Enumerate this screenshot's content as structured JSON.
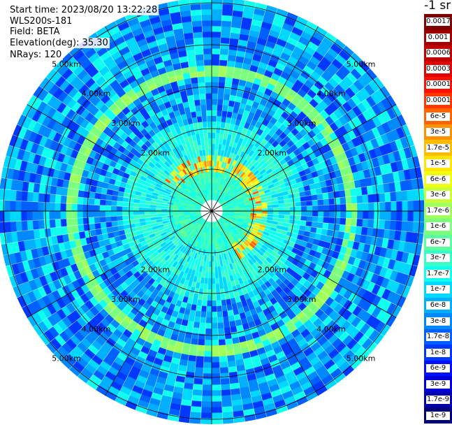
{
  "header": {
    "start_time": "Start time: 2023/08/20 13:22:28",
    "device": "WLS200s-181",
    "field": "Field: BETA",
    "elevation": "Elevation(deg): 35.30",
    "nrays": "NRays: 120"
  },
  "plot": {
    "n_rays": 120,
    "range_labels": [
      "2.00km",
      "3.00km",
      "4.00km",
      "5.00km"
    ],
    "ring_count": 5
  },
  "colorbar": {
    "unit": "-1 sr",
    "levels": [
      {
        "label": "0.0017",
        "color": "#7f0000"
      },
      {
        "label": "0.001",
        "color": "#a00000"
      },
      {
        "label": "0.0006",
        "color": "#c00000"
      },
      {
        "label": "0.0003",
        "color": "#e00000"
      },
      {
        "label": "0.00017",
        "color": "#ff1000"
      },
      {
        "label": "0.0001",
        "color": "#ff3800"
      },
      {
        "label": "6e-5",
        "color": "#ff6400"
      },
      {
        "label": "3e-5",
        "color": "#ff9000"
      },
      {
        "label": "1.7e-5",
        "color": "#ffbc00"
      },
      {
        "label": "1e-5",
        "color": "#ffe400"
      },
      {
        "label": "6e-6",
        "color": "#f0ff10"
      },
      {
        "label": "3e-6",
        "color": "#c8ff36"
      },
      {
        "label": "1.7e-6",
        "color": "#a0ff5a"
      },
      {
        "label": "1e-6",
        "color": "#7cff7c"
      },
      {
        "label": "6e-7",
        "color": "#5affa0"
      },
      {
        "label": "3e-7",
        "color": "#36ffc8"
      },
      {
        "label": "1.7e-7",
        "color": "#10ffee"
      },
      {
        "label": "1e-7",
        "color": "#00d8ff"
      },
      {
        "label": "6e-8",
        "color": "#00b0ff"
      },
      {
        "label": "3e-8",
        "color": "#0088ff"
      },
      {
        "label": "1.7e-8",
        "color": "#0060ff"
      },
      {
        "label": "1e-8",
        "color": "#0038ff"
      },
      {
        "label": "6e-9",
        "color": "#0010ff"
      },
      {
        "label": "3e-9",
        "color": "#0000d8"
      },
      {
        "label": "1.7e-9",
        "color": "#0000a8"
      },
      {
        "label": "1e-9",
        "color": "#00007a"
      }
    ]
  }
}
